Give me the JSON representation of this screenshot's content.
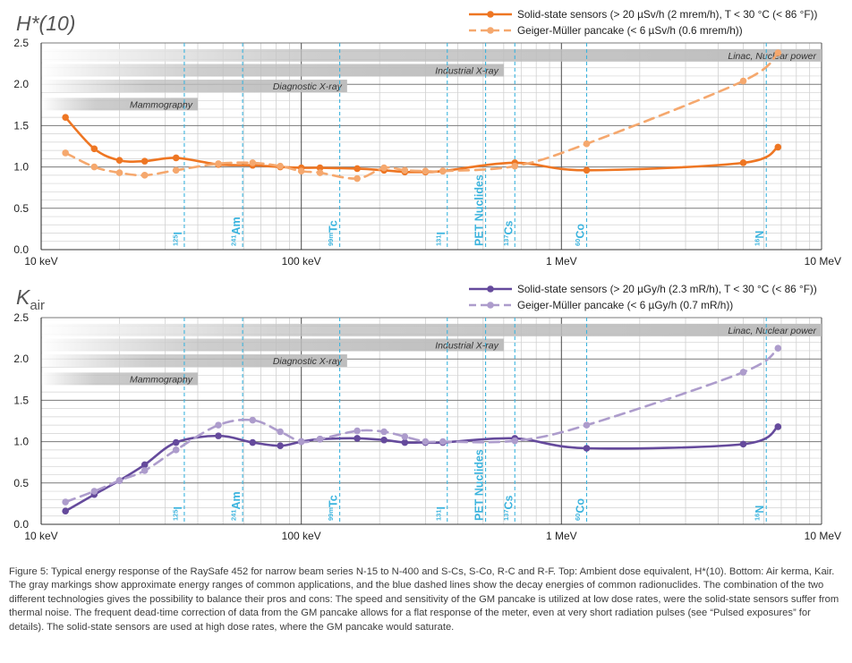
{
  "colors": {
    "solid_hstar": "#ee7623",
    "gm_hstar": "#f5a86e",
    "solid_kair": "#654a9c",
    "gm_kair": "#ad9ccc",
    "nuclide_line": "#3cb4de",
    "range_band": "#bdbdbd"
  },
  "caption": "Figure 5: Typical energy response of the RaySafe 452 for narrow beam series N-15 to N-400 and S-Cs, S-Co, R-C and R-F. Top: Ambient dose equivalent, H*(10). Bottom: Air kerma, Kair. The gray markings show approximate energy ranges of common applications, and the blue dashed lines show the decay energies of common radionuclides. The combination of the two different technologies gives the possibility to balance their pros and cons: The speed and sensitivity of the GM pancake is utilized at low dose rates, were the solid-state sensors suffer from thermal noise. The frequent dead-time correction of data from the GM pancake allows for a flat response of the meter, even at very short radiation pulses (see “Pulsed exposures” for details). The solid-state sensors are used at high dose rates, where the GM pancake would saturate.",
  "chart_data": [
    {
      "type": "line",
      "title_main": "H*(10)",
      "title_sub": "",
      "x_scale": "log",
      "x_unit": "keV",
      "xlim": [
        10,
        10000
      ],
      "ylim": [
        0,
        2.5
      ],
      "x_ticks": [
        {
          "value": 10,
          "label": "10 keV"
        },
        {
          "value": 100,
          "label": "100 keV"
        },
        {
          "value": 1000,
          "label": "1 MeV"
        },
        {
          "value": 10000,
          "label": "10 MeV"
        }
      ],
      "y_ticks": [
        "0.0",
        "0.5",
        "1.0",
        "1.5",
        "2.0",
        "2.5"
      ],
      "grid": true,
      "legend_position": "top-right",
      "series": [
        {
          "name": "Solid-state sensors (> 20 µSv/h (2 mrem/h), T < 30 °C (< 86 °F))",
          "style": "solid",
          "x": [
            12.4,
            16,
            20,
            25,
            33,
            48,
            65,
            83,
            100,
            118,
            164,
            208,
            250,
            300,
            350,
            662,
            1250,
            5000,
            6800
          ],
          "y": [
            1.6,
            1.22,
            1.08,
            1.07,
            1.11,
            1.03,
            1.02,
            1.0,
            0.99,
            0.99,
            0.98,
            0.96,
            0.94,
            0.94,
            0.95,
            1.05,
            0.96,
            1.05,
            1.24
          ]
        },
        {
          "name": "Geiger-Müller pancake (< 6 µSv/h (0.6 mrem/h))",
          "style": "dashed",
          "x": [
            12.4,
            16,
            20,
            25,
            33,
            48,
            65,
            83,
            100,
            118,
            164,
            208,
            250,
            300,
            350,
            662,
            1250,
            5000,
            6800
          ],
          "y": [
            1.17,
            1.0,
            0.93,
            0.9,
            0.96,
            1.04,
            1.05,
            1.01,
            0.95,
            0.93,
            0.86,
            0.99,
            0.96,
            0.95,
            0.95,
            1.01,
            1.28,
            2.04,
            2.38
          ]
        }
      ]
    },
    {
      "type": "line",
      "title_main": "K",
      "title_sub": "air",
      "x_scale": "log",
      "x_unit": "keV",
      "xlim": [
        10,
        10000
      ],
      "ylim": [
        0,
        2.5
      ],
      "x_ticks": [
        {
          "value": 10,
          "label": "10 keV"
        },
        {
          "value": 100,
          "label": "100 keV"
        },
        {
          "value": 1000,
          "label": "1 MeV"
        },
        {
          "value": 10000,
          "label": "10 MeV"
        }
      ],
      "y_ticks": [
        "0.0",
        "0.5",
        "1.0",
        "1.5",
        "2.0",
        "2.5"
      ],
      "grid": true,
      "legend_position": "top-right",
      "series": [
        {
          "name": "Solid-state sensors (> 20 µGy/h (2.3 mR/h), T < 30 °C (< 86 °F))",
          "style": "solid",
          "x": [
            12.4,
            16,
            20,
            25,
            33,
            48,
            65,
            83,
            100,
            118,
            164,
            208,
            250,
            300,
            350,
            662,
            1250,
            5000,
            6800
          ],
          "y": [
            0.16,
            0.36,
            0.53,
            0.72,
            0.99,
            1.07,
            0.99,
            0.95,
            1.0,
            1.03,
            1.04,
            1.02,
            0.99,
            0.99,
            0.99,
            1.04,
            0.92,
            0.97,
            1.18
          ]
        },
        {
          "name": "Geiger-Müller pancake (< 6 µGy/h (0.7 mR/h))",
          "style": "dashed",
          "x": [
            12.4,
            16,
            20,
            25,
            33,
            48,
            65,
            83,
            100,
            118,
            164,
            208,
            250,
            300,
            350,
            662,
            1250,
            5000,
            6800
          ],
          "y": [
            0.27,
            0.4,
            0.53,
            0.65,
            0.9,
            1.2,
            1.26,
            1.12,
            1.0,
            1.03,
            1.13,
            1.12,
            1.06,
            1.0,
            1.0,
            1.01,
            1.2,
            1.84,
            2.13
          ]
        }
      ]
    }
  ],
  "ranges": [
    {
      "label": "Linac, Nuclear power",
      "from_kev": 10,
      "to_kev": 10000,
      "y": 2.35
    },
    {
      "label": "Industrial X-ray",
      "from_kev": 10,
      "to_kev": 600,
      "y": 2.17
    },
    {
      "label": "Diagnostic X-ray",
      "from_kev": 10,
      "to_kev": 150,
      "y": 1.98
    },
    {
      "label": "Mammography",
      "from_kev": 10,
      "to_kev": 40,
      "y": 1.76
    }
  ],
  "nuclides": [
    {
      "mass": "125",
      "symbol": "I",
      "energy_kev": 35.5
    },
    {
      "mass": "241",
      "symbol": "Am",
      "energy_kev": 59.5
    },
    {
      "mass": "99m",
      "symbol": "Tc",
      "energy_kev": 140.5
    },
    {
      "mass": "131",
      "symbol": "I",
      "energy_kev": 364
    },
    {
      "mass": "",
      "symbol": "PET Nuclides",
      "energy_kev": 511
    },
    {
      "mass": "137",
      "symbol": "Cs",
      "energy_kev": 662
    },
    {
      "mass": "60",
      "symbol": "Co",
      "energy_kev": 1250
    },
    {
      "mass": "16",
      "symbol": "N",
      "energy_kev": 6130
    }
  ]
}
